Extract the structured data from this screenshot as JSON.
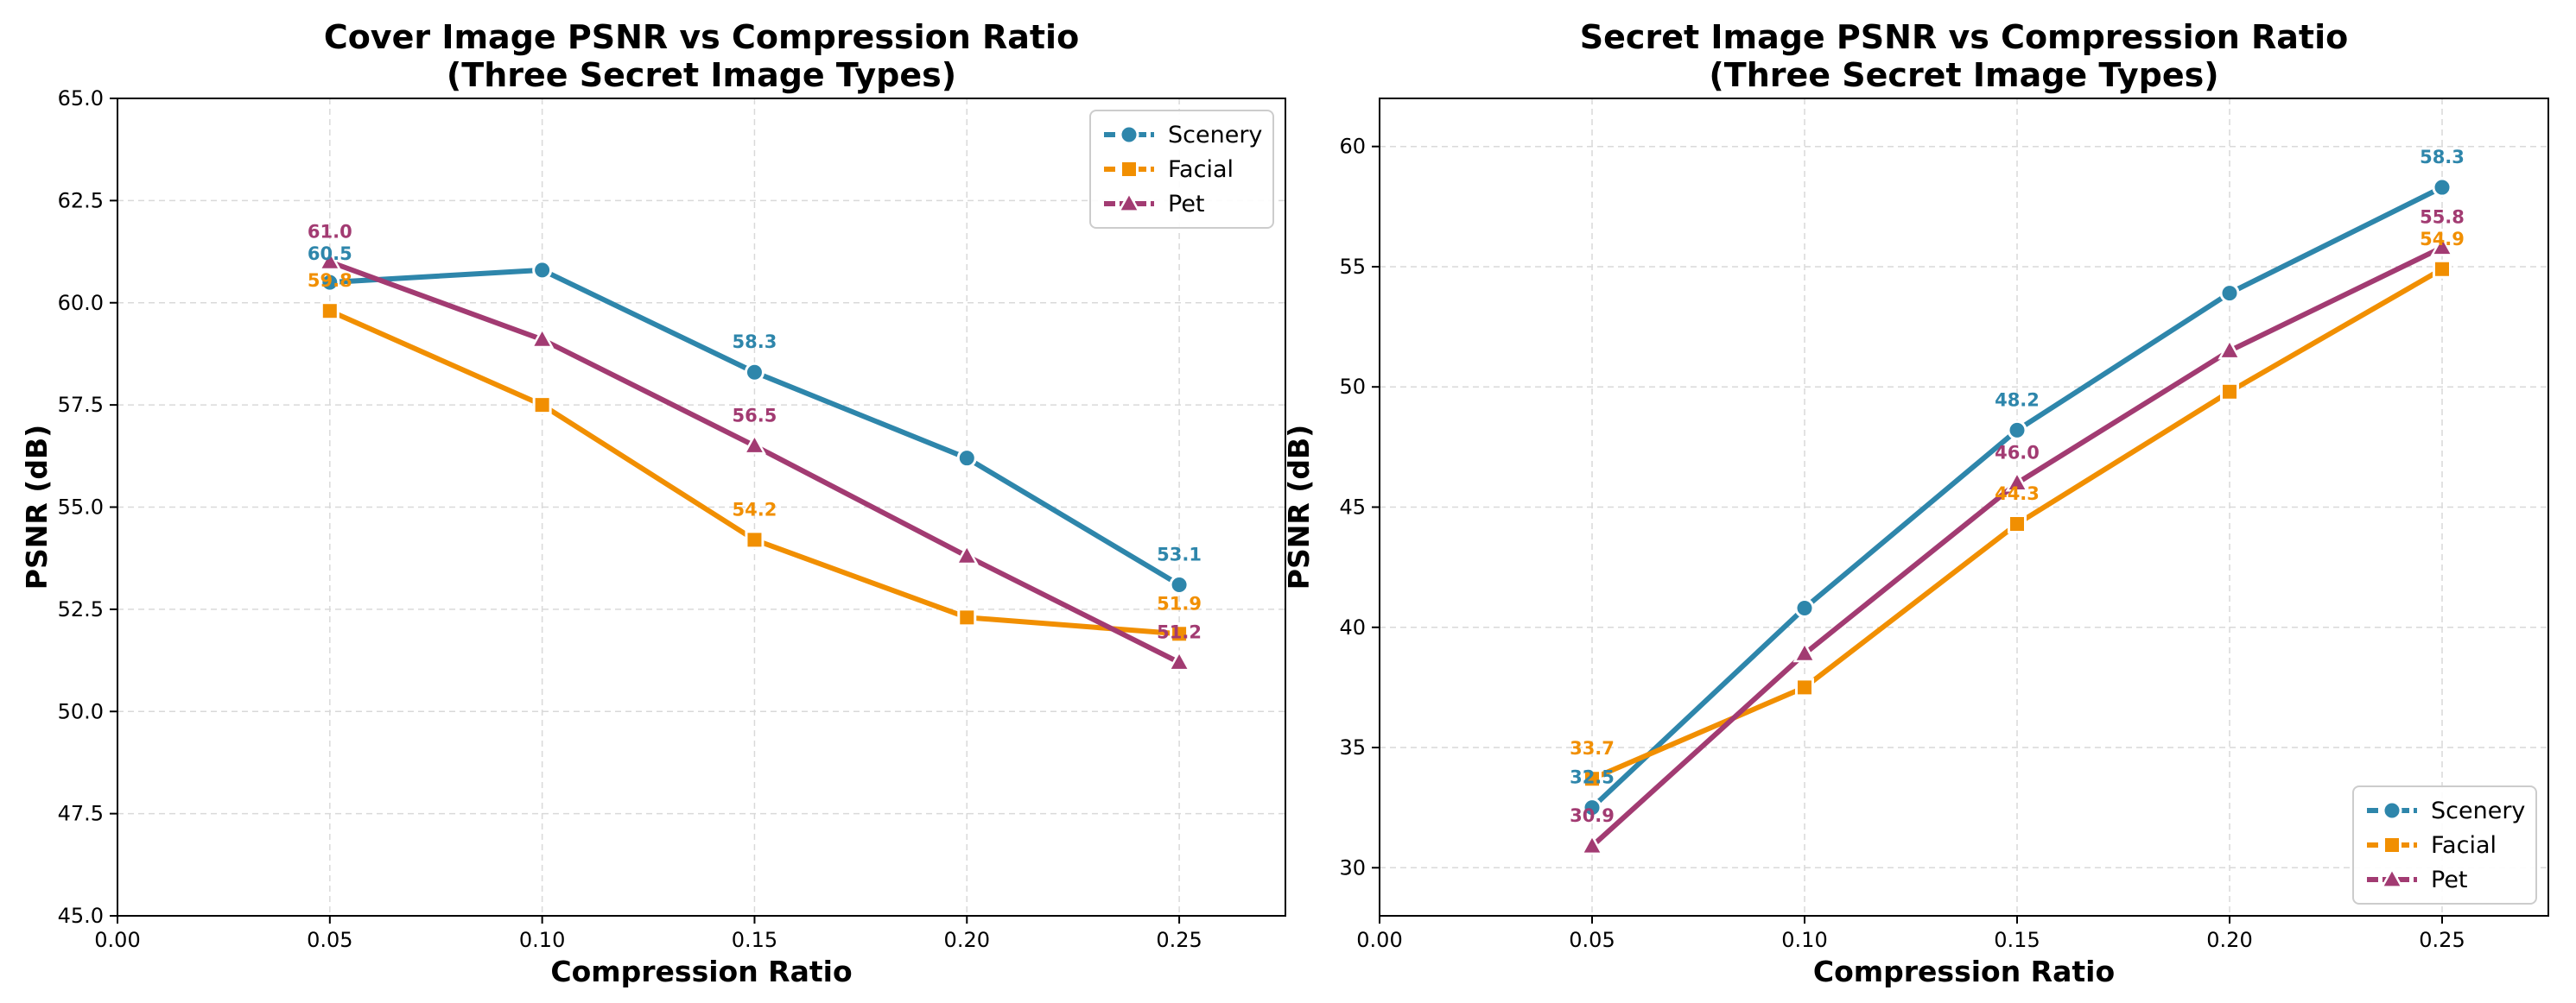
{
  "chart_data": [
    {
      "type": "line",
      "title_lines": [
        "Cover Image PSNR vs Compression Ratio",
        "(Three Secret Image Types)"
      ],
      "xlabel": "Compression Ratio",
      "ylabel": "PSNR (dB)",
      "xlim": [
        0.0,
        0.275
      ],
      "ylim": [
        45.0,
        65.0
      ],
      "xticks": [
        0.0,
        0.05,
        0.1,
        0.15,
        0.2,
        0.25
      ],
      "xtick_labels": [
        "0.00",
        "0.05",
        "0.10",
        "0.15",
        "0.20",
        "0.25"
      ],
      "yticks": [
        45.0,
        47.5,
        50.0,
        52.5,
        55.0,
        57.5,
        60.0,
        62.5,
        65.0
      ],
      "ytick_labels": [
        "45.0",
        "47.5",
        "50.0",
        "52.5",
        "55.0",
        "57.5",
        "60.0",
        "62.5",
        "65.0"
      ],
      "grid": true,
      "legend_position": "top-right",
      "x": [
        0.05,
        0.1,
        0.15,
        0.2,
        0.25
      ],
      "series": [
        {
          "name": "Scenery",
          "color": "#2E86AB",
          "marker": "circle",
          "values": [
            60.5,
            60.8,
            58.3,
            56.2,
            53.1
          ],
          "labeled_points": [
            0,
            2,
            4
          ]
        },
        {
          "name": "Facial",
          "color": "#F18F01",
          "marker": "square",
          "values": [
            59.8,
            57.5,
            54.2,
            52.3,
            51.9
          ],
          "labeled_points": [
            0,
            2,
            4
          ]
        },
        {
          "name": "Pet",
          "color": "#A23B72",
          "marker": "triangle",
          "values": [
            61.0,
            59.1,
            56.5,
            53.8,
            51.2
          ],
          "labeled_points": [
            0,
            2,
            4
          ]
        }
      ]
    },
    {
      "type": "line",
      "title_lines": [
        "Secret Image PSNR vs Compression Ratio",
        "(Three Secret Image Types)"
      ],
      "xlabel": "Compression Ratio",
      "ylabel": "PSNR (dB)",
      "xlim": [
        0.0,
        0.275
      ],
      "ylim": [
        28.0,
        62.0
      ],
      "xticks": [
        0.0,
        0.05,
        0.1,
        0.15,
        0.2,
        0.25
      ],
      "xtick_labels": [
        "0.00",
        "0.05",
        "0.10",
        "0.15",
        "0.20",
        "0.25"
      ],
      "yticks": [
        30,
        35,
        40,
        45,
        50,
        55,
        60
      ],
      "ytick_labels": [
        "30",
        "35",
        "40",
        "45",
        "50",
        "55",
        "60"
      ],
      "grid": true,
      "legend_position": "bottom-right",
      "x": [
        0.05,
        0.1,
        0.15,
        0.2,
        0.25
      ],
      "series": [
        {
          "name": "Scenery",
          "color": "#2E86AB",
          "marker": "circle",
          "values": [
            32.5,
            40.8,
            48.2,
            53.9,
            58.3
          ],
          "labeled_points": [
            0,
            2,
            4
          ]
        },
        {
          "name": "Facial",
          "color": "#F18F01",
          "marker": "square",
          "values": [
            33.7,
            37.5,
            44.3,
            49.8,
            54.9
          ],
          "labeled_points": [
            0,
            2,
            4
          ]
        },
        {
          "name": "Pet",
          "color": "#A23B72",
          "marker": "triangle",
          "values": [
            30.9,
            38.9,
            46.0,
            51.5,
            55.8
          ],
          "labeled_points": [
            0,
            2,
            4
          ]
        }
      ]
    }
  ]
}
